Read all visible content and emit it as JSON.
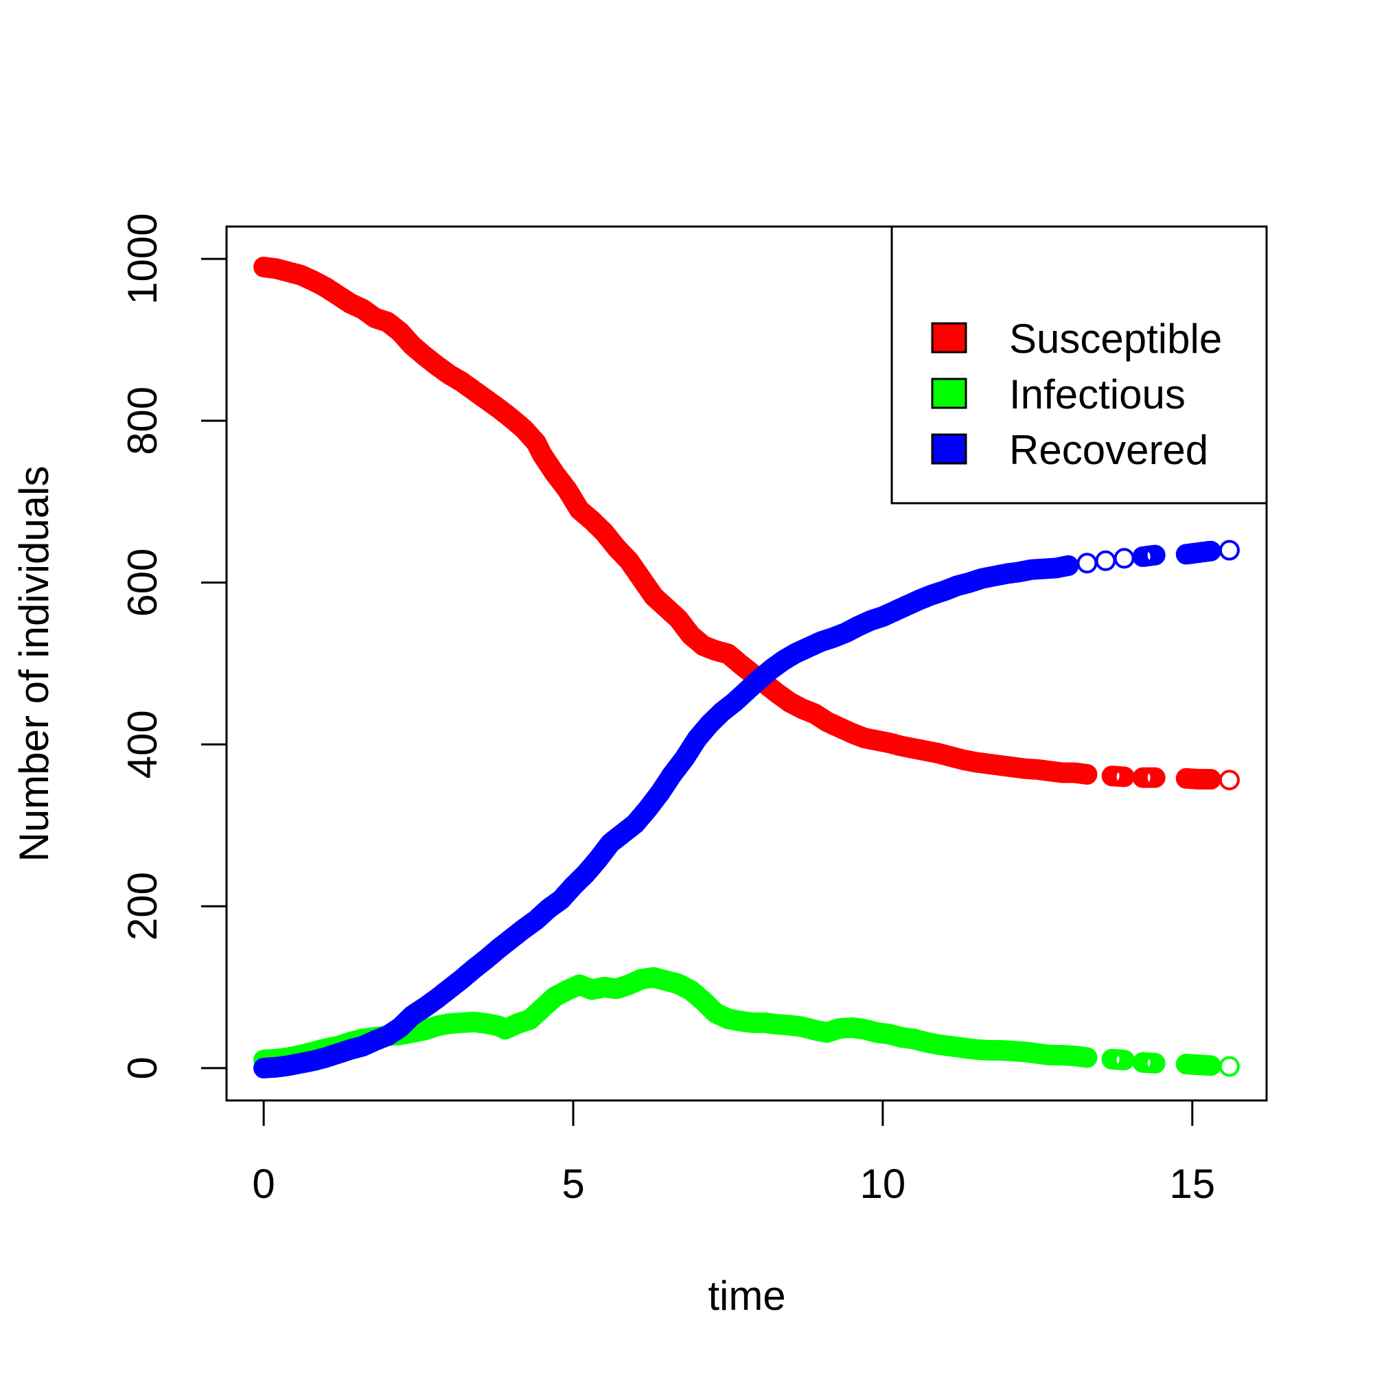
{
  "chart_data": {
    "type": "scatter",
    "title": "",
    "xlabel": "time",
    "ylabel": "Number of individuals",
    "xlim": [
      -0.6,
      16.2
    ],
    "ylim": [
      -40,
      1040
    ],
    "x_ticks": [
      0,
      5,
      10,
      15
    ],
    "y_ticks": [
      0,
      200,
      400,
      600,
      800,
      1000
    ],
    "x_tick_labels": [
      "0",
      "5",
      "10",
      "15"
    ],
    "y_tick_labels": [
      "0",
      "200",
      "400",
      "600",
      "800",
      "1000"
    ],
    "grid": false,
    "marker": "open-circle",
    "legend": {
      "position": "top-right",
      "entries": [
        "Susceptible",
        "Infectious",
        "Recovered"
      ]
    },
    "series": [
      {
        "name": "Susceptible",
        "color": "#ff0000",
        "points": [
          [
            0,
            990
          ],
          [
            0.2,
            988
          ],
          [
            0.4,
            984
          ],
          [
            0.6,
            980
          ],
          [
            0.8,
            973
          ],
          [
            1.0,
            965
          ],
          [
            1.2,
            955
          ],
          [
            1.4,
            945
          ],
          [
            1.6,
            938
          ],
          [
            1.8,
            927
          ],
          [
            2.0,
            922
          ],
          [
            2.2,
            910
          ],
          [
            2.4,
            893
          ],
          [
            2.6,
            880
          ],
          [
            2.8,
            868
          ],
          [
            3.0,
            857
          ],
          [
            3.2,
            848
          ],
          [
            3.4,
            837
          ],
          [
            3.6,
            826
          ],
          [
            3.8,
            815
          ],
          [
            4.0,
            803
          ],
          [
            4.2,
            790
          ],
          [
            4.4,
            773
          ],
          [
            4.5,
            758
          ],
          [
            4.7,
            735
          ],
          [
            4.9,
            715
          ],
          [
            5.1,
            690
          ],
          [
            5.3,
            677
          ],
          [
            5.5,
            662
          ],
          [
            5.7,
            643
          ],
          [
            5.9,
            627
          ],
          [
            6.1,
            605
          ],
          [
            6.3,
            583
          ],
          [
            6.5,
            569
          ],
          [
            6.7,
            555
          ],
          [
            6.9,
            535
          ],
          [
            7.1,
            522
          ],
          [
            7.3,
            516
          ],
          [
            7.5,
            512
          ],
          [
            7.7,
            499
          ],
          [
            7.9,
            487
          ],
          [
            8.1,
            475
          ],
          [
            8.3,
            463
          ],
          [
            8.5,
            452
          ],
          [
            8.7,
            444
          ],
          [
            8.9,
            438
          ],
          [
            9.1,
            428
          ],
          [
            9.3,
            421
          ],
          [
            9.5,
            414
          ],
          [
            9.7,
            408
          ],
          [
            9.9,
            405
          ],
          [
            10.1,
            402
          ],
          [
            10.3,
            398
          ],
          [
            10.5,
            395
          ],
          [
            10.7,
            392
          ],
          [
            10.9,
            389
          ],
          [
            11.1,
            385
          ],
          [
            11.3,
            381
          ],
          [
            11.5,
            378
          ],
          [
            11.7,
            376
          ],
          [
            11.9,
            374
          ],
          [
            12.1,
            372
          ],
          [
            12.3,
            370
          ],
          [
            12.5,
            369
          ],
          [
            12.7,
            367
          ],
          [
            12.9,
            365
          ],
          [
            13.1,
            365
          ],
          [
            13.3,
            363
          ],
          [
            13.7,
            361
          ],
          [
            13.9,
            360
          ],
          [
            14.2,
            359
          ],
          [
            14.4,
            359
          ],
          [
            14.9,
            358
          ],
          [
            15.1,
            357
          ],
          [
            15.3,
            357
          ],
          [
            15.6,
            356
          ]
        ]
      },
      {
        "name": "Infectious",
        "color": "#00ff00",
        "points": [
          [
            0,
            10
          ],
          [
            0.2,
            11
          ],
          [
            0.4,
            13
          ],
          [
            0.6,
            16
          ],
          [
            0.8,
            20
          ],
          [
            1.0,
            24
          ],
          [
            1.2,
            27
          ],
          [
            1.4,
            32
          ],
          [
            1.6,
            36
          ],
          [
            1.8,
            38
          ],
          [
            2.0,
            40
          ],
          [
            2.2,
            41
          ],
          [
            2.4,
            44
          ],
          [
            2.6,
            47
          ],
          [
            2.8,
            52
          ],
          [
            3.0,
            55
          ],
          [
            3.2,
            56
          ],
          [
            3.4,
            57
          ],
          [
            3.6,
            55
          ],
          [
            3.8,
            52
          ],
          [
            3.9,
            48
          ],
          [
            4.1,
            55
          ],
          [
            4.3,
            60
          ],
          [
            4.5,
            74
          ],
          [
            4.7,
            88
          ],
          [
            4.9,
            96
          ],
          [
            5.1,
            103
          ],
          [
            5.3,
            97
          ],
          [
            5.5,
            100
          ],
          [
            5.7,
            98
          ],
          [
            5.9,
            103
          ],
          [
            6.1,
            110
          ],
          [
            6.3,
            112
          ],
          [
            6.5,
            108
          ],
          [
            6.7,
            104
          ],
          [
            6.9,
            96
          ],
          [
            7.1,
            83
          ],
          [
            7.3,
            68
          ],
          [
            7.5,
            61
          ],
          [
            7.7,
            58
          ],
          [
            7.9,
            56
          ],
          [
            8.1,
            56
          ],
          [
            8.3,
            54
          ],
          [
            8.5,
            53
          ],
          [
            8.7,
            51
          ],
          [
            8.9,
            47
          ],
          [
            9.1,
            44
          ],
          [
            9.3,
            49
          ],
          [
            9.5,
            50
          ],
          [
            9.7,
            48
          ],
          [
            9.9,
            44
          ],
          [
            10.1,
            42
          ],
          [
            10.3,
            38
          ],
          [
            10.5,
            36
          ],
          [
            10.7,
            32
          ],
          [
            10.9,
            29
          ],
          [
            11.1,
            27
          ],
          [
            11.3,
            25
          ],
          [
            11.5,
            23
          ],
          [
            11.7,
            22
          ],
          [
            11.9,
            22
          ],
          [
            12.1,
            21
          ],
          [
            12.3,
            20
          ],
          [
            12.5,
            18
          ],
          [
            12.7,
            16
          ],
          [
            12.9,
            16
          ],
          [
            13.1,
            15
          ],
          [
            13.3,
            13
          ],
          [
            13.7,
            11
          ],
          [
            13.9,
            10
          ],
          [
            14.2,
            7
          ],
          [
            14.4,
            6
          ],
          [
            14.9,
            5
          ],
          [
            15.1,
            4
          ],
          [
            15.3,
            3
          ],
          [
            15.6,
            2
          ]
        ]
      },
      {
        "name": "Recovered",
        "color": "#0000ff",
        "points": [
          [
            0,
            0
          ],
          [
            0.2,
            1
          ],
          [
            0.4,
            3
          ],
          [
            0.6,
            6
          ],
          [
            0.8,
            9
          ],
          [
            1.0,
            13
          ],
          [
            1.2,
            18
          ],
          [
            1.4,
            23
          ],
          [
            1.6,
            27
          ],
          [
            1.8,
            34
          ],
          [
            2.0,
            40
          ],
          [
            2.2,
            50
          ],
          [
            2.4,
            65
          ],
          [
            2.6,
            75
          ],
          [
            2.8,
            86
          ],
          [
            3.0,
            98
          ],
          [
            3.2,
            110
          ],
          [
            3.4,
            123
          ],
          [
            3.6,
            135
          ],
          [
            3.8,
            148
          ],
          [
            4.0,
            160
          ],
          [
            4.2,
            172
          ],
          [
            4.4,
            183
          ],
          [
            4.6,
            197
          ],
          [
            4.8,
            208
          ],
          [
            5.0,
            225
          ],
          [
            5.2,
            240
          ],
          [
            5.4,
            258
          ],
          [
            5.6,
            278
          ],
          [
            5.8,
            290
          ],
          [
            6.0,
            302
          ],
          [
            6.2,
            320
          ],
          [
            6.4,
            340
          ],
          [
            6.6,
            363
          ],
          [
            6.8,
            383
          ],
          [
            7.0,
            407
          ],
          [
            7.2,
            425
          ],
          [
            7.4,
            440
          ],
          [
            7.6,
            452
          ],
          [
            7.8,
            466
          ],
          [
            8.0,
            480
          ],
          [
            8.2,
            493
          ],
          [
            8.4,
            504
          ],
          [
            8.6,
            513
          ],
          [
            8.8,
            520
          ],
          [
            9.0,
            527
          ],
          [
            9.2,
            532
          ],
          [
            9.4,
            538
          ],
          [
            9.6,
            546
          ],
          [
            9.8,
            553
          ],
          [
            10.0,
            558
          ],
          [
            10.2,
            565
          ],
          [
            10.4,
            572
          ],
          [
            10.6,
            579
          ],
          [
            10.8,
            585
          ],
          [
            11.0,
            590
          ],
          [
            11.2,
            596
          ],
          [
            11.4,
            600
          ],
          [
            11.6,
            605
          ],
          [
            11.8,
            608
          ],
          [
            12.0,
            611
          ],
          [
            12.2,
            613
          ],
          [
            12.4,
            616
          ],
          [
            12.6,
            617
          ],
          [
            12.8,
            618
          ],
          [
            13.0,
            621
          ],
          [
            13.3,
            624
          ],
          [
            13.6,
            627
          ],
          [
            13.9,
            630
          ],
          [
            14.2,
            632
          ],
          [
            14.4,
            634
          ],
          [
            14.9,
            635
          ],
          [
            15.1,
            637
          ],
          [
            15.3,
            639
          ],
          [
            15.6,
            640
          ]
        ]
      }
    ]
  }
}
